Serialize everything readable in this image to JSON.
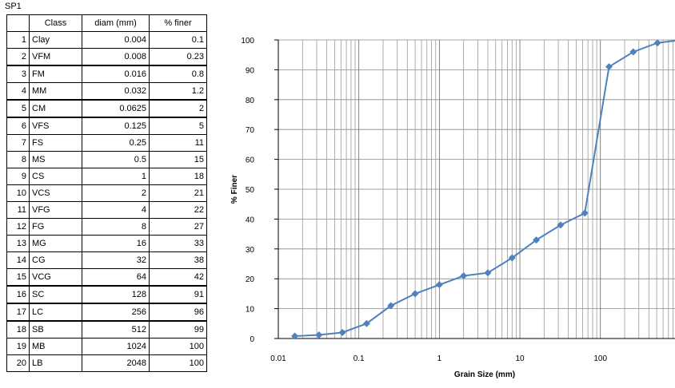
{
  "sheet": {
    "name": "SP1"
  },
  "table": {
    "headers": [
      "",
      "Class",
      "diam (mm)",
      "% finer"
    ],
    "rows": [
      {
        "n": "1",
        "cls": "Clay",
        "diam": "0.004",
        "finer": "0.1"
      },
      {
        "n": "2",
        "cls": "VFM",
        "diam": "0.008",
        "finer": "0.23"
      },
      {
        "n": "3",
        "cls": "FM",
        "diam": "0.016",
        "finer": "0.8"
      },
      {
        "n": "4",
        "cls": "MM",
        "diam": "0.032",
        "finer": "1.2"
      },
      {
        "n": "5",
        "cls": "CM",
        "diam": "0.0625",
        "finer": "2"
      },
      {
        "n": "6",
        "cls": "VFS",
        "diam": "0.125",
        "finer": "5"
      },
      {
        "n": "7",
        "cls": "FS",
        "diam": "0.25",
        "finer": "11"
      },
      {
        "n": "8",
        "cls": "MS",
        "diam": "0.5",
        "finer": "15"
      },
      {
        "n": "9",
        "cls": "CS",
        "diam": "1",
        "finer": "18"
      },
      {
        "n": "10",
        "cls": "VCS",
        "diam": "2",
        "finer": "21"
      },
      {
        "n": "11",
        "cls": "VFG",
        "diam": "4",
        "finer": "22"
      },
      {
        "n": "12",
        "cls": "FG",
        "diam": "8",
        "finer": "27"
      },
      {
        "n": "13",
        "cls": "MG",
        "diam": "16",
        "finer": "33"
      },
      {
        "n": "14",
        "cls": "CG",
        "diam": "32",
        "finer": "38"
      },
      {
        "n": "15",
        "cls": "VCG",
        "diam": "64",
        "finer": "42"
      },
      {
        "n": "16",
        "cls": "SC",
        "diam": "128",
        "finer": "91"
      },
      {
        "n": "17",
        "cls": "LC",
        "diam": "256",
        "finer": "96"
      },
      {
        "n": "18",
        "cls": "SB",
        "diam": "512",
        "finer": "99"
      },
      {
        "n": "19",
        "cls": "MB",
        "diam": "1024",
        "finer": "100"
      },
      {
        "n": "20",
        "cls": "LB",
        "diam": "2048",
        "finer": "100"
      }
    ]
  },
  "chart_data": {
    "type": "scatter",
    "xscale": "log",
    "xlabel": "Grain Size (mm)",
    "ylabel": "% Finer",
    "xlim": [
      0.01,
      844
    ],
    "ylim": [
      0,
      100
    ],
    "xticks": [
      "0.01",
      "0.1",
      "1",
      "10",
      "100"
    ],
    "yticks": [
      "0",
      "10",
      "20",
      "30",
      "40",
      "50",
      "60",
      "70",
      "80",
      "90",
      "100"
    ],
    "grid": true,
    "line_color": "#4f81bd",
    "series": [
      {
        "x": [
          0.016,
          0.032,
          0.0625,
          0.125,
          0.25,
          0.5,
          1,
          2,
          4,
          8,
          16,
          32,
          64,
          128,
          256,
          512,
          1024
        ],
        "y": [
          0.8,
          1.2,
          2,
          5,
          11,
          15,
          18,
          21,
          22,
          27,
          33,
          38,
          42,
          91,
          96,
          99,
          100
        ]
      }
    ]
  }
}
